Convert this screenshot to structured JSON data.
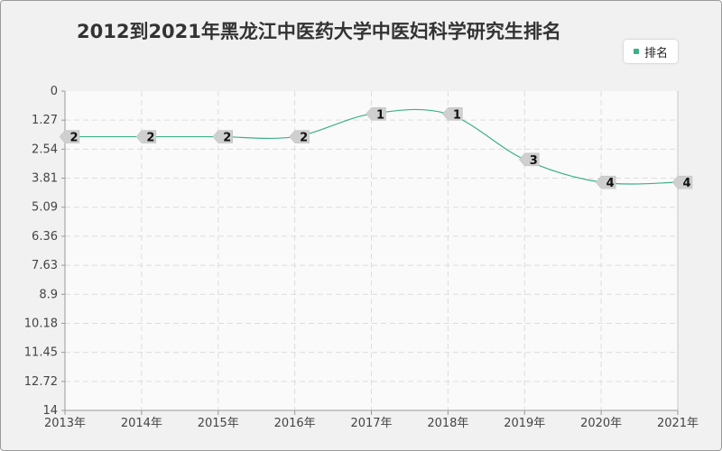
{
  "title": "2012到2021年黑龙江中医药大学中医妇科学研究生排名",
  "legend": {
    "label": "排名"
  },
  "colors": {
    "series": "#3cb08a",
    "grid": "#dddddd",
    "axis": "#999999",
    "label_bg": "#cfcfcf"
  },
  "chart_data": {
    "type": "line",
    "title": "2012到2021年黑龙江中医药大学中医妇科学研究生排名",
    "categories": [
      "2013年",
      "2014年",
      "2015年",
      "2016年",
      "2017年",
      "2018年",
      "2019年",
      "2020年",
      "2021年"
    ],
    "series": [
      {
        "name": "排名",
        "values": [
          2,
          2,
          2,
          2,
          1,
          1,
          3,
          4,
          4
        ]
      }
    ],
    "y_ticks": [
      "0",
      "1.27",
      "2.54",
      "3.81",
      "5.09",
      "6.36",
      "7.63",
      "8.9",
      "10.18",
      "11.45",
      "12.72",
      "14"
    ],
    "ylim": [
      0,
      14
    ],
    "y_inverted": true,
    "grid": true,
    "legend_position": "top-right"
  }
}
